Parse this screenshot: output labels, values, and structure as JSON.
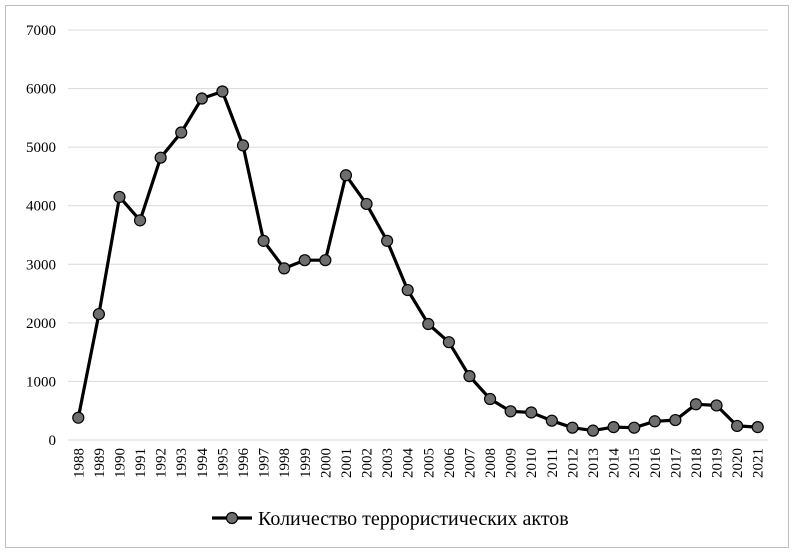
{
  "chart_data": {
    "type": "line",
    "title": "",
    "xlabel": "",
    "ylabel": "",
    "ylim": [
      0,
      7000
    ],
    "yticks": [
      "0",
      "1000",
      "2000",
      "3000",
      "4000",
      "5000",
      "6000",
      "7000"
    ],
    "grid": true,
    "legend_position": "bottom",
    "x": [
      "1988",
      "1989",
      "1990",
      "1991",
      "1992",
      "1993",
      "1994",
      "1995",
      "1996",
      "1997",
      "1998",
      "1999",
      "2000",
      "2001",
      "2002",
      "2003",
      "2004",
      "2005",
      "2006",
      "2007",
      "2008",
      "2009",
      "2010",
      "2011",
      "2012",
      "2013",
      "2014",
      "2015",
      "2016",
      "2017",
      "2018",
      "2019",
      "2020",
      "2021"
    ],
    "series": [
      {
        "name": "Количество террористических актов",
        "color": "#000000",
        "marker_color": "#6e6e6e",
        "values": [
          380,
          2150,
          4150,
          3750,
          4820,
          5250,
          5830,
          5950,
          5030,
          3400,
          2930,
          3070,
          3070,
          4520,
          4030,
          3400,
          2560,
          1980,
          1670,
          1090,
          700,
          490,
          470,
          330,
          210,
          160,
          220,
          210,
          320,
          340,
          610,
          590,
          240,
          220
        ]
      }
    ]
  }
}
